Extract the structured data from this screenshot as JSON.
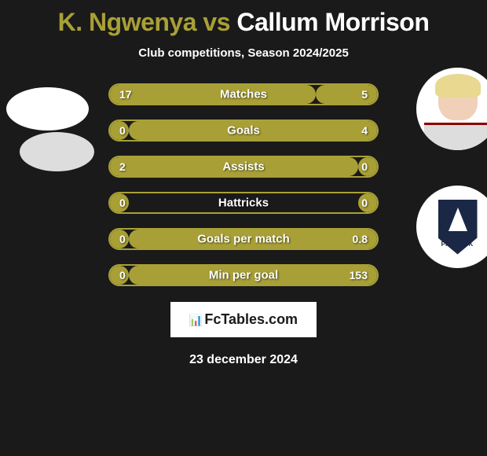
{
  "header": {
    "player1": "K. Ngwenya",
    "vs": "vs",
    "player2": "Callum Morrison",
    "subtitle": "Club competitions, Season 2024/2025"
  },
  "colors": {
    "accent": "#a8a036",
    "background": "#1a1a1a",
    "text": "#ffffff"
  },
  "stats": [
    {
      "label": "Matches",
      "left_val": "17",
      "right_val": "5",
      "left_pct": 77,
      "right_pct": 23
    },
    {
      "label": "Goals",
      "left_val": "0",
      "right_val": "4",
      "left_pct": 7,
      "right_pct": 93
    },
    {
      "label": "Assists",
      "left_val": "2",
      "right_val": "0",
      "left_pct": 93,
      "right_pct": 7
    },
    {
      "label": "Hattricks",
      "left_val": "0",
      "right_val": "0",
      "left_pct": 7,
      "right_pct": 7
    },
    {
      "label": "Goals per match",
      "left_val": "0",
      "right_val": "0.8",
      "left_pct": 7,
      "right_pct": 93
    },
    {
      "label": "Min per goal",
      "left_val": "0",
      "right_val": "153",
      "left_pct": 7,
      "right_pct": 93
    }
  ],
  "branding": {
    "site": "FcTables.com",
    "date": "23 december 2024",
    "avatar_right_2_text": "FALKIRK"
  }
}
